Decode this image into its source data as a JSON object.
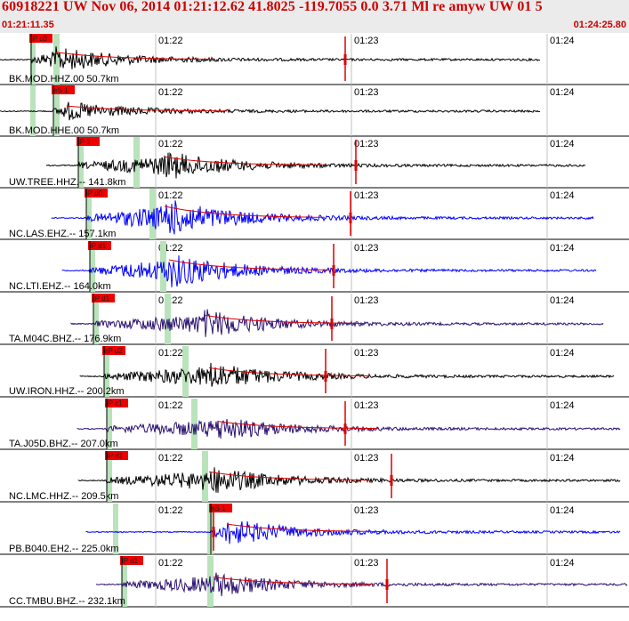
{
  "header": {
    "title": "60918221 UW Nov 06, 2014 01:21:12.62   41.8025 -119.7055  0.0 3.71 Ml re amyw UW 01   5",
    "start_time": "01:21:11.35",
    "end_time": "01:24:25.80"
  },
  "colors": {
    "header_bg": "#ebebeb",
    "header_text": "#cc0000",
    "pick_box": "#ee0000",
    "marker": "#dd0000",
    "window_band": "#b9e3bb",
    "grid": "#c0c0c0",
    "trace_black": "#000000",
    "trace_blue": "#0000ff",
    "trace_purple": "#2a1070"
  },
  "time_labels": [
    "01:22",
    "01:23",
    "01:24"
  ],
  "traces": [
    {
      "label": "BK.MOD.HHZ.00 50.7km",
      "pick": "iP c0",
      "color": "trace_black"
    },
    {
      "label": "BK.MOD.HHE.00 50.7km",
      "pick": "eS 1",
      "color": "trace_black"
    },
    {
      "label": "UW.TREE.HHZ.-- 141.8km",
      "pick": "iP 2",
      "color": "trace_black"
    },
    {
      "label": "NC.LAS.EHZ.-- 157.1km",
      "pick": "iP d0",
      "color": "trace_blue"
    },
    {
      "label": "NC.LTI.EHZ.-- 164.0km",
      "pick": "iP d1",
      "color": "trace_blue"
    },
    {
      "label": "TA.M04C.BHZ.-- 176.9km",
      "pick": "iP d1",
      "color": "trace_purple"
    },
    {
      "label": "UW.IRON.HHZ.-- 200.2km",
      "pick": "eP d2",
      "color": "trace_black"
    },
    {
      "label": "TA.J05D.BHZ.-- 207.0km",
      "pick": "iP c1",
      "color": "trace_purple"
    },
    {
      "label": "NC.LMC.HHZ.-- 209.5km",
      "pick": "iP d1",
      "color": "trace_black"
    },
    {
      "label": "PB.B040.EH2.-- 225.0km",
      "pick": "eS 1",
      "color": "trace_blue"
    },
    {
      "label": "CC.TMBU.BHZ.-- 232.1km",
      "pick": "iP d1",
      "color": "trace_purple"
    }
  ]
}
